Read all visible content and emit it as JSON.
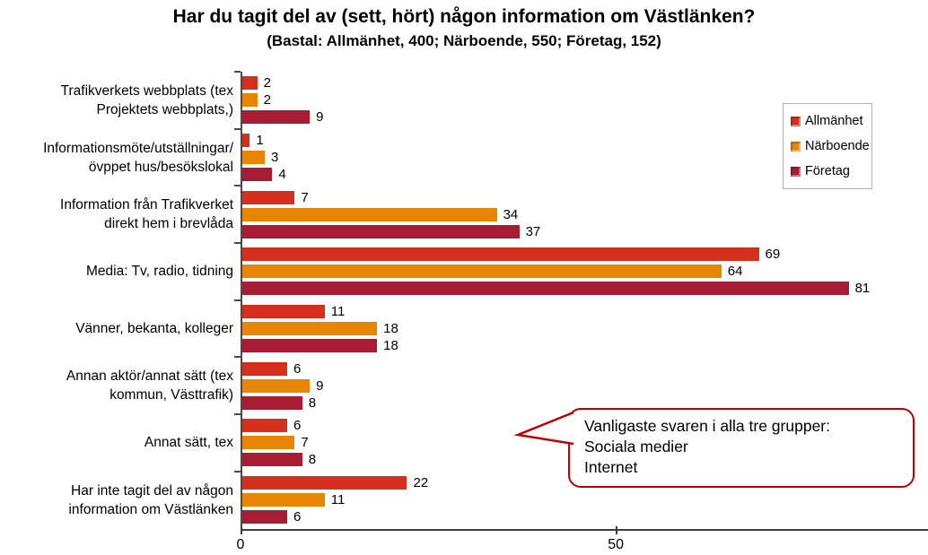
{
  "chart_data": {
    "type": "bar",
    "orientation": "horizontal",
    "title": "Har du tagit del av (sett, hört) någon information om Västlänken?",
    "subtitle": "(Bastal: Allmänhet, 400; Närboende, 550; Företag, 152)",
    "categories": [
      "Trafikverkets webbplats (tex\nProjektets webbplats,)",
      "Informationsmöte/utställningar/\növppet hus/besökslokal",
      "Information från Trafikverket\ndirekt hem i brevlåda",
      "Media: Tv, radio, tidning",
      "Vänner, bekanta, kolleger",
      "Annan aktör/annat sätt (tex\nkommun, Västtrafik)",
      "Annat sätt, tex",
      "Har inte tagit del av någon\ninformation om Västlänken"
    ],
    "series": [
      {
        "name": "Allmänhet",
        "color": "#d5301e",
        "values": [
          2,
          1,
          7,
          69,
          11,
          6,
          6,
          22
        ]
      },
      {
        "name": "Närboende",
        "color": "#e88504",
        "values": [
          2,
          3,
          34,
          64,
          18,
          9,
          7,
          11
        ]
      },
      {
        "name": "Företag",
        "color": "#a61c33",
        "values": [
          9,
          4,
          37,
          81,
          18,
          8,
          8,
          6
        ]
      }
    ],
    "xlim": [
      0,
      91.6
    ],
    "xticks": [
      0,
      50
    ],
    "grid": false,
    "value_labels": true,
    "legend_position": "upper-right",
    "annotation": {
      "border_color": "#c00000",
      "lines": [
        "Vanligaste svaren i alla tre grupper:",
        "Sociala medier",
        "Internet"
      ]
    }
  }
}
